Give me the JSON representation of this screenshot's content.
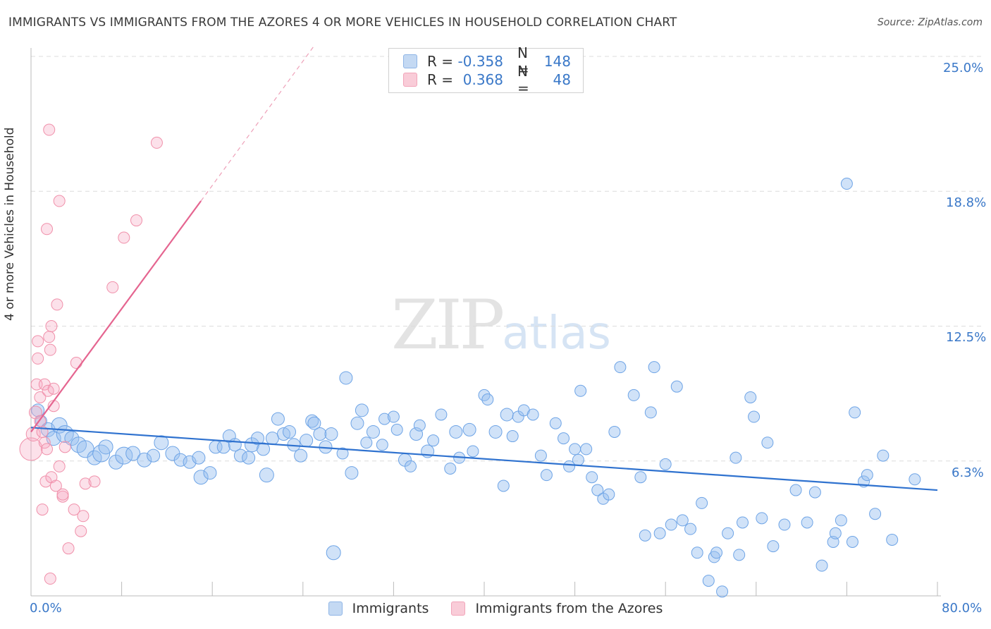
{
  "title": "IMMIGRANTS VS IMMIGRANTS FROM THE AZORES 4 OR MORE VEHICLES IN HOUSEHOLD CORRELATION CHART",
  "source": "Source: ZipAtlas.com",
  "watermark": {
    "zip": "ZIP",
    "atlas": "atlas"
  },
  "legend": {
    "r_label": "R =",
    "n_label": "N =",
    "rows": [
      {
        "r": "-0.358",
        "n": "148",
        "color": "#a8c8ee"
      },
      {
        "r": "0.368",
        "n": "48",
        "color": "#f5b8c8"
      }
    ]
  },
  "bottom_legend": {
    "immigrants": "Immigrants",
    "azores": "Immigrants from the Azores"
  },
  "chart_data": {
    "type": "scatter",
    "xlabel": "",
    "ylabel": "4 or more Vehicles in Household",
    "x_ticks": [
      "0.0%",
      "80.0%"
    ],
    "y_ticks": [
      "25.0%",
      "18.8%",
      "12.5%",
      "6.3%"
    ],
    "xlim": [
      0,
      80
    ],
    "ylim": [
      0,
      25
    ],
    "grid": true,
    "series": [
      {
        "name": "Immigrants",
        "color": "#6ea4e6",
        "trend": {
          "x": [
            0,
            80
          ],
          "y": [
            7.8,
            4.9
          ]
        },
        "points": [
          [
            0.6,
            8.6,
            9
          ],
          [
            0.9,
            8.1,
            8
          ],
          [
            1.5,
            7.7,
            10
          ],
          [
            2.0,
            7.3,
            10
          ],
          [
            2.5,
            7.9,
            11
          ],
          [
            3.0,
            7.5,
            12
          ],
          [
            3.6,
            7.3,
            10
          ],
          [
            4.2,
            7.0,
            11
          ],
          [
            4.8,
            6.8,
            12
          ],
          [
            5.6,
            6.4,
            10
          ],
          [
            6.2,
            6.6,
            12
          ],
          [
            6.6,
            6.9,
            10
          ],
          [
            7.5,
            6.2,
            10
          ],
          [
            8.2,
            6.5,
            12
          ],
          [
            9.0,
            6.6,
            10
          ],
          [
            10.0,
            6.3,
            10
          ],
          [
            10.8,
            6.5,
            9
          ],
          [
            11.5,
            7.1,
            10
          ],
          [
            12.5,
            6.6,
            10
          ],
          [
            13.2,
            6.3,
            9
          ],
          [
            14.0,
            6.2,
            9
          ],
          [
            14.8,
            6.4,
            9
          ],
          [
            15.0,
            5.5,
            10
          ],
          [
            15.8,
            5.7,
            9
          ],
          [
            16.3,
            6.9,
            9
          ],
          [
            17.0,
            6.9,
            9
          ],
          [
            17.5,
            7.4,
            9
          ],
          [
            18.0,
            7.0,
            9
          ],
          [
            18.5,
            6.5,
            9
          ],
          [
            19.2,
            6.4,
            9
          ],
          [
            19.5,
            7.0,
            10
          ],
          [
            20.0,
            7.3,
            9
          ],
          [
            20.5,
            6.8,
            9
          ],
          [
            20.8,
            5.6,
            10
          ],
          [
            21.3,
            7.3,
            9
          ],
          [
            21.8,
            8.2,
            9
          ],
          [
            22.3,
            7.5,
            9
          ],
          [
            22.8,
            7.6,
            9
          ],
          [
            23.2,
            7.0,
            9
          ],
          [
            23.8,
            6.5,
            9
          ],
          [
            24.3,
            7.2,
            9
          ],
          [
            24.8,
            8.1,
            9
          ],
          [
            25.0,
            8.0,
            9
          ],
          [
            25.5,
            7.5,
            9
          ],
          [
            26.0,
            6.9,
            9
          ],
          [
            26.5,
            7.5,
            9
          ],
          [
            27.5,
            6.6,
            8
          ],
          [
            27.8,
            10.1,
            9
          ],
          [
            28.3,
            5.7,
            9
          ],
          [
            28.8,
            8.0,
            9
          ],
          [
            29.2,
            8.6,
            9
          ],
          [
            29.6,
            7.1,
            8
          ],
          [
            30.2,
            7.6,
            9
          ],
          [
            31.0,
            7.0,
            8
          ],
          [
            31.2,
            8.2,
            8
          ],
          [
            32.0,
            8.3,
            8
          ],
          [
            32.3,
            7.7,
            8
          ],
          [
            33.0,
            6.3,
            9
          ],
          [
            33.5,
            6.0,
            8
          ],
          [
            34.0,
            7.5,
            9
          ],
          [
            34.3,
            7.9,
            8
          ],
          [
            35.0,
            6.7,
            9
          ],
          [
            35.5,
            7.2,
            8
          ],
          [
            36.2,
            8.4,
            8
          ],
          [
            37.0,
            5.9,
            8
          ],
          [
            37.5,
            7.6,
            9
          ],
          [
            37.8,
            6.4,
            8
          ],
          [
            38.7,
            7.7,
            9
          ],
          [
            39.0,
            6.7,
            8
          ],
          [
            40.0,
            9.3,
            8
          ],
          [
            40.3,
            9.1,
            8
          ],
          [
            41.0,
            7.6,
            9
          ],
          [
            41.7,
            5.1,
            8
          ],
          [
            42.0,
            8.4,
            9
          ],
          [
            42.5,
            7.4,
            8
          ],
          [
            43.0,
            8.3,
            8
          ],
          [
            43.5,
            8.6,
            8
          ],
          [
            44.3,
            8.4,
            8
          ],
          [
            45.0,
            6.5,
            8
          ],
          [
            45.5,
            5.6,
            8
          ],
          [
            46.3,
            8.0,
            8
          ],
          [
            47.0,
            7.3,
            8
          ],
          [
            47.5,
            6.0,
            8
          ],
          [
            48.0,
            6.8,
            8
          ],
          [
            48.3,
            6.3,
            8
          ],
          [
            48.5,
            9.5,
            8
          ],
          [
            49.0,
            6.8,
            8
          ],
          [
            49.5,
            5.5,
            8
          ],
          [
            50.0,
            4.9,
            8
          ],
          [
            50.5,
            4.5,
            8
          ],
          [
            51.0,
            4.7,
            8
          ],
          [
            51.5,
            7.6,
            8
          ],
          [
            52.0,
            10.6,
            8
          ],
          [
            53.2,
            9.3,
            8
          ],
          [
            53.8,
            5.5,
            8
          ],
          [
            54.2,
            2.8,
            8
          ],
          [
            54.7,
            8.5,
            8
          ],
          [
            55.0,
            10.6,
            8
          ],
          [
            55.5,
            2.9,
            8
          ],
          [
            56.0,
            6.1,
            8
          ],
          [
            56.5,
            3.3,
            8
          ],
          [
            57.0,
            9.7,
            8
          ],
          [
            57.5,
            3.5,
            8
          ],
          [
            58.2,
            3.1,
            8
          ],
          [
            58.8,
            2.0,
            8
          ],
          [
            59.2,
            4.3,
            8
          ],
          [
            59.8,
            0.7,
            8
          ],
          [
            60.3,
            1.8,
            8
          ],
          [
            60.5,
            2.0,
            8
          ],
          [
            61.0,
            0.2,
            8
          ],
          [
            61.5,
            2.9,
            8
          ],
          [
            62.2,
            6.4,
            8
          ],
          [
            62.5,
            1.9,
            8
          ],
          [
            62.8,
            3.4,
            8
          ],
          [
            63.5,
            9.2,
            8
          ],
          [
            63.8,
            8.3,
            8
          ],
          [
            64.5,
            3.6,
            8
          ],
          [
            65.0,
            7.1,
            8
          ],
          [
            65.5,
            2.3,
            8
          ],
          [
            66.5,
            3.3,
            8
          ],
          [
            67.5,
            4.9,
            8
          ],
          [
            68.5,
            3.4,
            8
          ],
          [
            69.2,
            4.8,
            8
          ],
          [
            69.8,
            1.4,
            8
          ],
          [
            70.8,
            2.5,
            8
          ],
          [
            71.0,
            2.9,
            8
          ],
          [
            71.5,
            3.5,
            8
          ],
          [
            72.5,
            2.5,
            8
          ],
          [
            72.7,
            8.5,
            8
          ],
          [
            73.5,
            5.3,
            8
          ],
          [
            73.8,
            5.6,
            8
          ],
          [
            74.5,
            3.8,
            8
          ],
          [
            75.2,
            6.5,
            8
          ],
          [
            76.0,
            2.6,
            8
          ],
          [
            78.0,
            5.4,
            8
          ],
          [
            72.0,
            19.1,
            8
          ],
          [
            26.7,
            2.0,
            10
          ]
        ]
      },
      {
        "name": "Immigrants from the Azores",
        "color": "#f090aa",
        "trend": {
          "x": [
            0,
            15
          ],
          "y": [
            7.6,
            18.3
          ]
        },
        "trend_dashed": {
          "x": [
            15,
            25
          ],
          "y": [
            18.3,
            25.5
          ]
        },
        "points": [
          [
            0.0,
            6.8,
            16
          ],
          [
            0.2,
            7.5,
            10
          ],
          [
            0.4,
            8.5,
            9
          ],
          [
            0.5,
            9.8,
            8
          ],
          [
            0.6,
            11.0,
            8
          ],
          [
            0.6,
            11.8,
            8
          ],
          [
            0.8,
            9.2,
            8
          ],
          [
            0.8,
            8.1,
            8
          ],
          [
            1.0,
            7.6,
            8
          ],
          [
            1.0,
            4.0,
            8
          ],
          [
            1.2,
            9.8,
            8
          ],
          [
            1.2,
            7.1,
            8
          ],
          [
            1.3,
            5.3,
            8
          ],
          [
            1.4,
            6.8,
            8
          ],
          [
            1.4,
            17.0,
            8
          ],
          [
            1.5,
            9.5,
            8
          ],
          [
            1.6,
            21.6,
            8
          ],
          [
            1.6,
            12.0,
            8
          ],
          [
            1.7,
            11.4,
            8
          ],
          [
            1.7,
            0.8,
            8
          ],
          [
            1.8,
            5.5,
            8
          ],
          [
            1.8,
            12.5,
            8
          ],
          [
            2.0,
            8.8,
            8
          ],
          [
            2.0,
            9.6,
            8
          ],
          [
            2.2,
            5.1,
            8
          ],
          [
            2.3,
            13.5,
            8
          ],
          [
            2.5,
            6.0,
            8
          ],
          [
            2.5,
            18.3,
            8
          ],
          [
            2.8,
            4.6,
            8
          ],
          [
            2.8,
            4.7,
            8
          ],
          [
            3.0,
            6.9,
            8
          ],
          [
            3.3,
            2.2,
            8
          ],
          [
            3.8,
            4.0,
            8
          ],
          [
            4.0,
            10.8,
            8
          ],
          [
            4.4,
            3.0,
            8
          ],
          [
            4.6,
            3.7,
            8
          ],
          [
            4.8,
            5.2,
            8
          ],
          [
            5.6,
            5.3,
            8
          ],
          [
            7.2,
            14.3,
            8
          ],
          [
            8.2,
            16.6,
            8
          ],
          [
            9.3,
            17.4,
            8
          ],
          [
            11.1,
            21.0,
            8
          ]
        ]
      }
    ]
  }
}
